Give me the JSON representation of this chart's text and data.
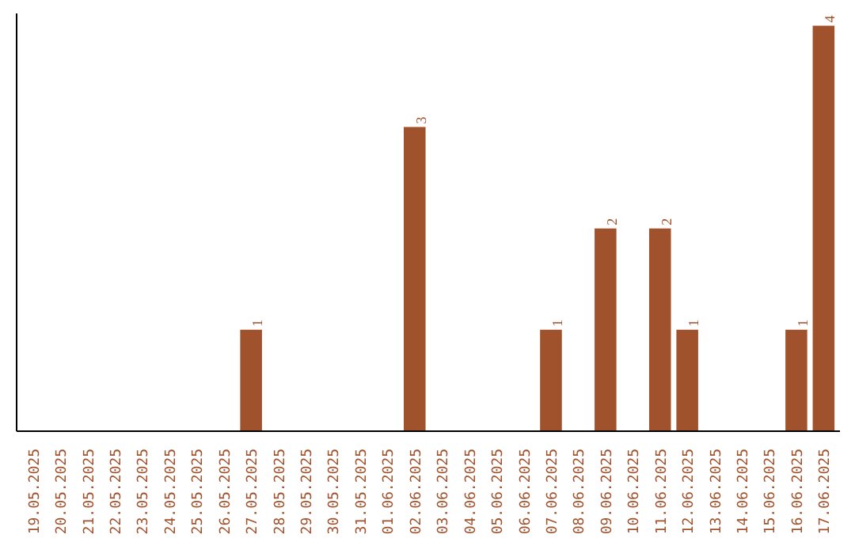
{
  "chart_data": {
    "type": "bar",
    "categories": [
      "19.05.2025",
      "20.05.2025",
      "21.05.2025",
      "22.05.2025",
      "23.05.2025",
      "24.05.2025",
      "25.05.2025",
      "26.05.2025",
      "27.05.2025",
      "28.05.2025",
      "29.05.2025",
      "30.05.2025",
      "31.05.2025",
      "01.06.2025",
      "02.06.2025",
      "03.06.2025",
      "04.06.2025",
      "05.06.2025",
      "06.06.2025",
      "07.06.2025",
      "08.06.2025",
      "09.06.2025",
      "10.06.2025",
      "11.06.2025",
      "12.06.2025",
      "13.06.2025",
      "14.06.2025",
      "15.06.2025",
      "16.06.2025",
      "17.06.2025"
    ],
    "values": [
      0,
      0,
      0,
      0,
      0,
      0,
      0,
      0,
      1,
      0,
      0,
      0,
      0,
      0,
      3,
      0,
      0,
      0,
      0,
      1,
      0,
      2,
      0,
      2,
      1,
      0,
      0,
      0,
      1,
      4
    ],
    "value_labels": [
      null,
      null,
      null,
      null,
      null,
      null,
      null,
      null,
      "1",
      null,
      null,
      null,
      null,
      null,
      "3",
      null,
      null,
      null,
      null,
      "1",
      null,
      "2",
      null,
      "2",
      "1",
      null,
      null,
      null,
      "1",
      "4"
    ],
    "color": "#a0522d",
    "grid": false
  }
}
